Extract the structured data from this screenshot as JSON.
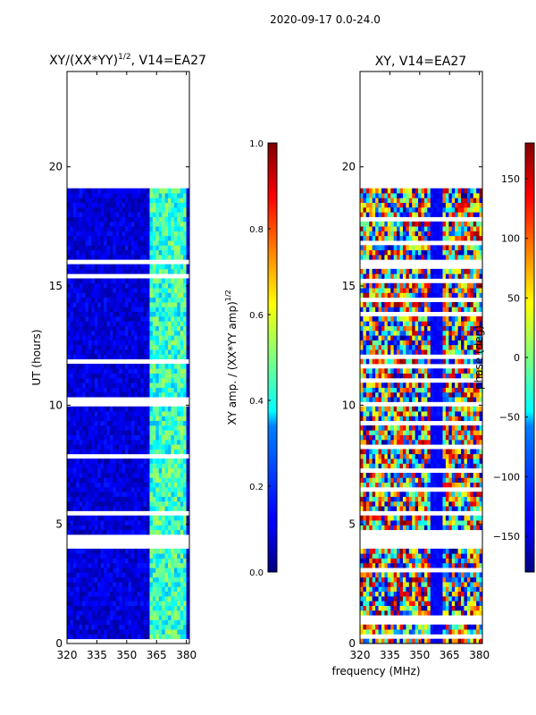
{
  "figure": {
    "suptitle": "2020-09-17 0.0-24.0",
    "xlabel": "frequency (MHz)"
  },
  "chart_data": [
    {
      "type": "heatmap",
      "title_main": "XY/(XX*YY)",
      "title_exp": "1/2",
      "title_tail": ", V14=EA27",
      "ylabel": "UT (hours)",
      "x_ticks": [
        320,
        335,
        350,
        365,
        380
      ],
      "y_ticks": [
        0,
        5,
        10,
        15,
        20
      ],
      "xlim": [
        320,
        381.5
      ],
      "ylim": [
        0,
        24
      ],
      "data_ut_range": [
        0,
        19.1
      ],
      "colorbar": {
        "label_main": "XY amp. / (XX*YY amp)",
        "label_exp": "1/2",
        "ticks": [
          "0.0",
          "0.2",
          "0.4",
          "0.6",
          "0.8",
          "1.0"
        ],
        "range": [
          0,
          1
        ]
      }
    },
    {
      "type": "heatmap",
      "title": "XY, V14=EA27",
      "ylabel": "",
      "x_ticks": [
        320,
        335,
        350,
        365,
        380
      ],
      "y_ticks": [
        0,
        5,
        10,
        15,
        20
      ],
      "xlim": [
        320,
        381.5
      ],
      "ylim": [
        0,
        24
      ],
      "data_ut_range": [
        0,
        19.1
      ],
      "colorbar": {
        "label": "phase (deg)",
        "ticks": [
          "150",
          "100",
          "50",
          "0",
          "−50",
          "−100",
          "−150"
        ],
        "range": [
          -180,
          180
        ]
      }
    }
  ]
}
